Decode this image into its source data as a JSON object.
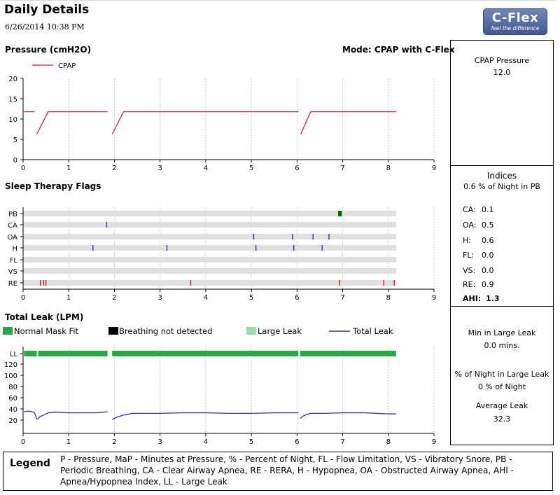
{
  "header": {
    "title": "Daily Details",
    "datetime": "6/26/2014 10:38 PM",
    "logo_main": "C-Flex",
    "logo_tagline": "feel the difference"
  },
  "pressure": {
    "section_title": "Pressure (cmH2O)",
    "mode": "Mode: CPAP with C-Flex",
    "legend_label": "CPAP"
  },
  "flags": {
    "section_title": "Sleep Therapy Flags"
  },
  "leak": {
    "section_title": "Total Leak (LPM)",
    "legend": [
      "Normal Mask Fit",
      "Breathing not detected",
      "Large Leak",
      "Total Leak"
    ]
  },
  "side": {
    "cpap_pressure_label": "CPAP Pressure",
    "cpap_pressure_value": "12.0",
    "indices_title": "Indices",
    "indices_pb": "0.6 % of Night in PB",
    "indices": [
      {
        "label": "CA:",
        "value": "0.1"
      },
      {
        "label": "OA:",
        "value": "0.5"
      },
      {
        "label": "H:",
        "value": "0.6"
      },
      {
        "label": "FL:",
        "value": "0.0"
      },
      {
        "label": "VS:",
        "value": "0.0"
      },
      {
        "label": "RE:",
        "value": "0.9"
      },
      {
        "label": "AHI:",
        "value": "1.3"
      }
    ],
    "min_large_leak_label": "Min in Large Leak",
    "min_large_leak_value": "0.0  mins.",
    "pct_large_leak_label": "% of Night in Large Leak",
    "pct_large_leak_value": "0 % of Night",
    "avg_leak_label": "Average Leak",
    "avg_leak_value": "32.3"
  },
  "legend": {
    "title": "Legend",
    "text": "P - Pressure, MaP - Minutes at Pressure, % - Percent of Night, FL - Flow Limitation, VS - Vibratory Snore, PB - Periodic Breathing, CA - Clear Airway Apnea, RE - RERA, H - Hypopnea, OA - Obstructed Airway Apnea, AHI - Apnea/Hypopnea Index, LL - Large Leak"
  },
  "colors": {
    "pressure": "#dd2222",
    "normal_fit": "#22aa44",
    "breathing_not_detected": "#000000",
    "large_leak": "#99ddaa",
    "total_leak": "#333399",
    "pb": "#006600",
    "ca": "#6633cc",
    "oa": "#3333cc",
    "h": "#3333cc",
    "re": "#cc2222",
    "flag_bar": "#e0e0e0"
  },
  "chart_data": [
    {
      "type": "line",
      "title": "Pressure (cmH2O)",
      "xlim": [
        0,
        9
      ],
      "ylim": [
        0,
        20
      ],
      "x_ticks": [
        0,
        1,
        2,
        3,
        4,
        5,
        6,
        7,
        8,
        9
      ],
      "y_ticks": [
        0,
        5,
        10,
        15,
        20
      ],
      "series": [
        {
          "name": "CPAP",
          "segments": [
            [
              [
                0.02,
                11.8
              ],
              [
                0.25,
                11.8
              ]
            ],
            [
              [
                0.3,
                6.3
              ],
              [
                0.55,
                11.8
              ],
              [
                1.85,
                11.8
              ]
            ],
            [
              [
                1.95,
                6.3
              ],
              [
                2.2,
                11.8
              ],
              [
                6.03,
                11.8
              ]
            ],
            [
              [
                6.08,
                6.3
              ],
              [
                6.3,
                11.8
              ],
              [
                8.17,
                11.8
              ]
            ]
          ]
        }
      ]
    },
    {
      "type": "scatter",
      "title": "Sleep Therapy Flags",
      "xlim": [
        0,
        9
      ],
      "x_ticks": [
        0,
        1,
        2,
        3,
        4,
        5,
        6,
        7,
        8,
        9
      ],
      "row_end": 8.17,
      "rows": [
        {
          "name": "PB",
          "events": [],
          "spans": [
            [
              6.9,
              6.98
            ]
          ]
        },
        {
          "name": "CA",
          "events": [
            1.83
          ],
          "spans": []
        },
        {
          "name": "OA",
          "events": [
            5.05,
            5.9,
            6.35,
            6.7
          ],
          "spans": []
        },
        {
          "name": "H",
          "events": [
            1.53,
            3.15,
            5.1,
            5.93,
            6.55
          ],
          "spans": []
        },
        {
          "name": "FL",
          "events": [],
          "spans": []
        },
        {
          "name": "VS",
          "events": [],
          "spans": []
        },
        {
          "name": "RE",
          "events": [
            0.38,
            0.45,
            0.5,
            3.67,
            6.93,
            7.9,
            8.13
          ],
          "spans": []
        }
      ]
    },
    {
      "type": "line",
      "title": "Total Leak (LPM)",
      "xlim": [
        0,
        9
      ],
      "ylim": [
        0,
        120
      ],
      "x_ticks": [
        0,
        1,
        2,
        3,
        4,
        5,
        6,
        7,
        8,
        9
      ],
      "y_ticks": [
        20,
        40,
        60,
        80,
        100,
        120
      ],
      "ll_label": "LL",
      "ll_bars": [
        [
          0.02,
          0.3
        ],
        [
          0.33,
          1.85
        ],
        [
          1.95,
          6.03
        ],
        [
          6.07,
          8.17
        ]
      ],
      "series": [
        {
          "name": "Total Leak",
          "segments": [
            [
              [
                0.02,
                35
              ],
              [
                0.12,
                36
              ],
              [
                0.2,
                35
              ],
              [
                0.25,
                33
              ],
              [
                0.3,
                22
              ],
              [
                0.33,
                22
              ],
              [
                0.37,
                26
              ],
              [
                0.45,
                29
              ],
              [
                0.55,
                33
              ],
              [
                0.7,
                34
              ],
              [
                1.0,
                33
              ],
              [
                1.3,
                33
              ],
              [
                1.6,
                33
              ],
              [
                1.75,
                34
              ],
              [
                1.85,
                35
              ]
            ],
            [
              [
                1.95,
                21
              ],
              [
                2.05,
                25
              ],
              [
                2.2,
                29
              ],
              [
                2.4,
                32
              ],
              [
                3.0,
                32
              ],
              [
                3.5,
                33
              ],
              [
                4.0,
                33
              ],
              [
                4.5,
                32
              ],
              [
                5.0,
                32
              ],
              [
                5.5,
                33
              ],
              [
                6.03,
                33
              ]
            ],
            [
              [
                6.07,
                23
              ],
              [
                6.15,
                28
              ],
              [
                6.3,
                32
              ],
              [
                6.6,
                32
              ],
              [
                7.0,
                33
              ],
              [
                7.5,
                33
              ],
              [
                8.0,
                31
              ],
              [
                8.17,
                31
              ]
            ]
          ]
        }
      ]
    }
  ]
}
